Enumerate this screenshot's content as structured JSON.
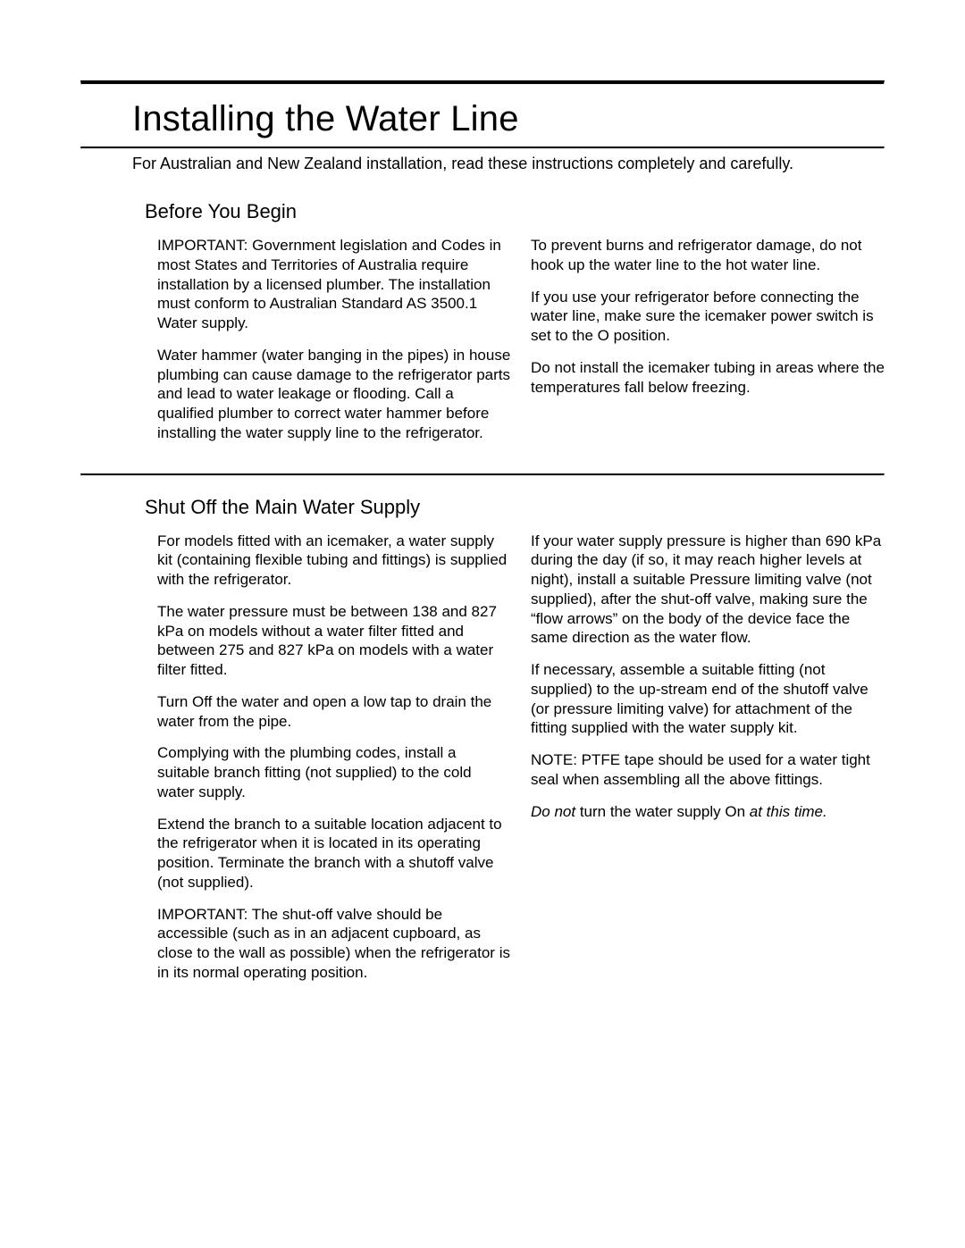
{
  "title": "Installing the Water Line",
  "subtitle": "For Australian and New Zealand installation, read these instructions completely and carefully.",
  "sections": {
    "before": {
      "heading": "Before You Begin",
      "left": {
        "p1_prefix": "IMPORTANT:",
        "p1_body": " Government legislation and Codes in most States and Territories of Australia require installation by a licensed plumber. The installation must conform to Australian Standard AS 3500.1 Water supply.",
        "p2": "Water hammer (water banging in the pipes) in house plumbing can cause damage to the refrigerator parts and lead to water leakage or flooding. Call a qualified plumber to correct water hammer before installing the water supply line to the refrigerator."
      },
      "right": {
        "p1": "To prevent burns and refrigerator damage, do not hook up the water line to the hot water line.",
        "p2_a": "If you use your refrigerator before connecting the water line, make sure the icemaker power switch is set to the ",
        "p2_b": "O",
        "p2_c": " position.",
        "p3": "Do not install the icemaker tubing in areas where the temperatures fall below freezing."
      }
    },
    "shutoff": {
      "heading": "Shut Off the Main Water Supply",
      "left": {
        "p1_a": "For models fitted with an icemaker, a ",
        "p1_b": "water supply kit",
        "p1_c": " (containing flexible tubing and fittings) is supplied with the refrigerator.",
        "p2": "The water pressure must be between 138 and 827 kPa on models without a water filter fitted and between 275 and 827 kPa on models with a water filter fitted.",
        "p3_a": "Turn ",
        "p3_b": "Off",
        "p3_c": " the water and open a low tap to drain the water from the pipe.",
        "p4": "Complying with the plumbing codes, install a suitable branch fitting (not supplied) to the cold water supply.",
        "p5": "Extend the branch to a suitable location adjacent to the refrigerator when it is located in its operating position. Terminate the branch with a shutoff valve (not supplied).",
        "p6_prefix": "IMPORTANT:",
        "p6_body": " The shut-off valve should be accessible (such as in an adjacent cupboard, as close to the wall as possible) when the refrigerator is in its normal operating position."
      },
      "right": {
        "p1": "If your water supply pressure is higher than 690 kPa during the day (if so, it may reach higher levels at night), install a suitable Pressure limiting valve (not supplied), after the shut-off valve, making sure the “flow arrows” on the body of the device face the same direction as the water flow.",
        "p2": "If necessary, assemble a suitable fitting (not supplied) to the up-stream end of the shutoff valve (or pressure limiting valve) for attachment of the fitting supplied with the water supply kit.",
        "p3_prefix": "NOTE:",
        "p3_body": " PTFE tape should be used for a water tight seal when assembling all the above fittings.",
        "p4_a": "Do not",
        "p4_b": " turn the water supply ",
        "p4_c": "On",
        "p4_d": " at this time."
      }
    }
  }
}
